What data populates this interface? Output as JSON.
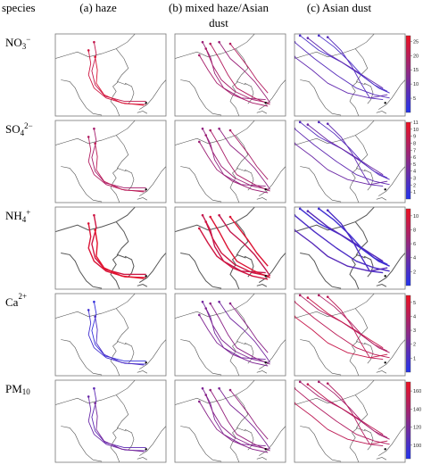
{
  "header": {
    "species_label": "species",
    "columns": [
      {
        "title_line1": "(a) haze",
        "title_line2": ""
      },
      {
        "title_line1": "(b) mixed haze/Asian",
        "title_line2": "dust"
      },
      {
        "title_line1": "(c) Asian dust",
        "title_line2": ""
      }
    ]
  },
  "rows": [
    {
      "species": {
        "base": "NO",
        "sub": "3",
        "sup": "−"
      },
      "colorbar_ticks": [
        "25",
        "20",
        "15",
        "10",
        "5"
      ],
      "range": [
        0,
        27
      ]
    },
    {
      "species": {
        "base": "SO",
        "sub": "4",
        "sup": "2−"
      },
      "colorbar_ticks": [
        "11",
        "10",
        "9",
        "8",
        "7",
        "6",
        "5",
        "4",
        "3",
        "2",
        "1"
      ],
      "range": [
        0,
        11
      ]
    },
    {
      "species": {
        "base": "NH",
        "sub": "4",
        "sup": "+"
      },
      "colorbar_ticks": [
        "10",
        "8",
        "6",
        "4",
        "2"
      ],
      "range": [
        0,
        11
      ]
    },
    {
      "species": {
        "base": "Ca",
        "sub": "",
        "sup": "2+"
      },
      "colorbar_ticks": [
        "5",
        "4",
        "3",
        "2",
        "1"
      ],
      "range": [
        0,
        5.5
      ]
    },
    {
      "species": {
        "base": "PM",
        "sub": "10",
        "sup": ""
      },
      "colorbar_ticks": [
        "160",
        "140",
        "120",
        "100"
      ],
      "range": [
        85,
        170
      ]
    }
  ],
  "colors": {
    "low": "#2233ee",
    "high": "#ee1122",
    "map_line": "#555555",
    "frame": "#777777"
  },
  "trajectory_levels": [
    [
      0.85,
      0.65,
      0.25
    ],
    [
      0.7,
      0.6,
      0.3
    ],
    [
      0.9,
      0.85,
      0.2
    ],
    [
      0.15,
      0.45,
      0.75
    ],
    [
      0.35,
      0.5,
      0.7
    ]
  ]
}
